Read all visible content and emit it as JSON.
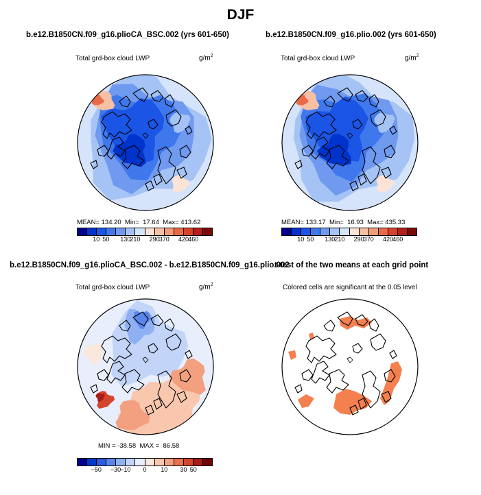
{
  "title": "DJF",
  "panels": [
    {
      "id": "a",
      "title": "b.e12.B1850CN.f09_g16.plioCA_BSC.002 (yrs 601-650)",
      "subtitle": "Total grd-box cloud LWP",
      "units": "g/m",
      "units_exp": "2",
      "stats": "MEAN= 134.20  Min=  17.64  Max= 413.62",
      "colorbar_labels": [
        "10",
        "50",
        "130",
        "210",
        "290",
        "370",
        "420",
        "460"
      ]
    },
    {
      "id": "b",
      "title": "b.e12.B1850CN.f09_g16.plio.002 (yrs 601-650)",
      "subtitle": "Total grd-box cloud LWP",
      "units": "g/m",
      "units_exp": "2",
      "stats": "MEAN= 133.17  Min=  16.93  Max= 435.33",
      "colorbar_labels": [
        "10",
        "50",
        "130",
        "210",
        "290",
        "370",
        "420",
        "460"
      ]
    },
    {
      "id": "c",
      "title": "b.e12.B1850CN.f09_g16.plioCA_BSC.002 - b.e12.B1850CN.f09_g16.plio.002",
      "subtitle": "Total grd-box cloud LWP",
      "units": "g/m",
      "units_exp": "2",
      "stats": "MIN = -38.58  MAX =  86.58",
      "colorbar_labels": [
        "−50",
        "−30",
        "−10",
        "0",
        "10",
        "30",
        "50"
      ]
    },
    {
      "id": "d",
      "title": "t-test of the two means at each grid point",
      "subtitle": "Colored cells are significant at the 0.05 level"
    }
  ],
  "colors": {
    "abs_scale": [
      "#00008c",
      "#0033cc",
      "#1a55e6",
      "#3f78ec",
      "#6f9af0",
      "#a6c3f5",
      "#d6e4fb",
      "#fbe3d6",
      "#f7c0a5",
      "#f39b77",
      "#ea6a48",
      "#d8402a",
      "#b31e18",
      "#7a0a0a"
    ],
    "diff_scale": [
      "#00008c",
      "#0038c8",
      "#2a5be0",
      "#5a86ec",
      "#8fb0f3",
      "#c2d5f8",
      "#e8eefc",
      "#fbe8dc",
      "#f8c7ae",
      "#f2a07f",
      "#e8714f",
      "#d4452e",
      "#a81c16",
      "#6e0606"
    ],
    "sig": "#f47f4f",
    "coast": "#000000"
  }
}
